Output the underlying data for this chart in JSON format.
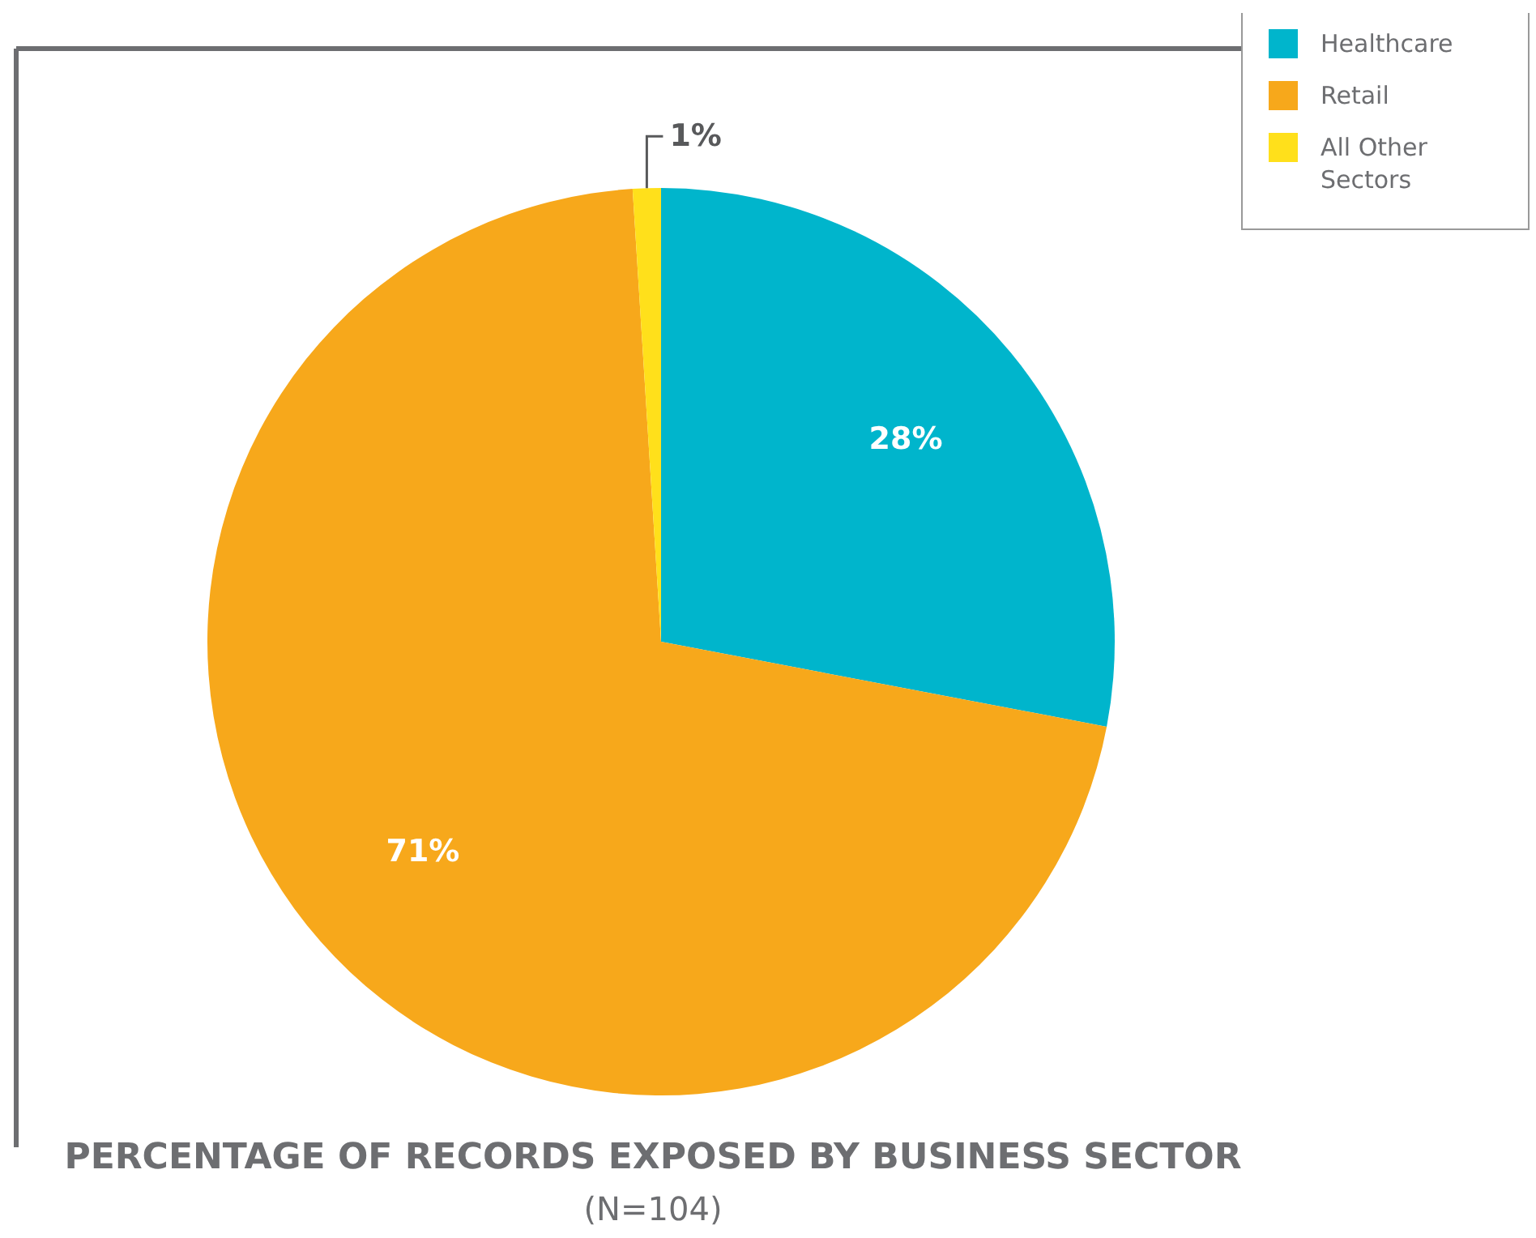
{
  "chart_data": {
    "type": "pie",
    "title": "PERCENTAGE OF RECORDS EXPOSED BY BUSINESS SECTOR",
    "subtitle": "(N=104)",
    "categories": [
      "Healthcare",
      "Retail",
      "All Other Sectors"
    ],
    "values": [
      28,
      71,
      1
    ],
    "colors": [
      "#00b5cc",
      "#f7a81b",
      "#ffe01b"
    ],
    "value_labels": [
      "28%",
      "71%",
      "1%"
    ],
    "legend": "top right"
  }
}
